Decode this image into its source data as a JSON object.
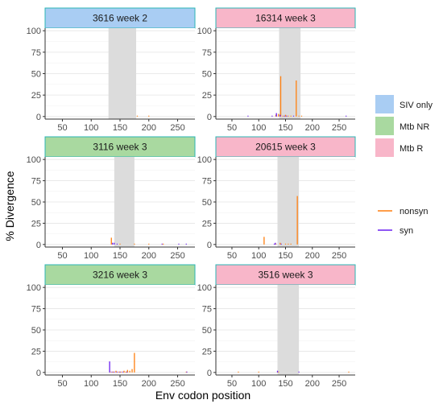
{
  "chart_data": {
    "type": "faceted-bar",
    "xlabel": "Env codon position",
    "ylabel": "% Divergence",
    "xlim": [
      20,
      280
    ],
    "ylim": [
      -3,
      103
    ],
    "x_ticks": [
      50,
      100,
      150,
      200,
      250
    ],
    "y_ticks": [
      0,
      25,
      50,
      75,
      100
    ],
    "grid": true,
    "legend_groups": [
      {
        "position": "right",
        "kind": "fill",
        "entries": [
          {
            "label": "SIV only",
            "color": "#a9cdf3"
          },
          {
            "label": "Mtb NR",
            "color": "#a9d9a0"
          },
          {
            "label": "Mtb R",
            "color": "#f8b6c9"
          }
        ]
      },
      {
        "position": "right",
        "kind": "line",
        "entries": [
          {
            "label": "nonsyn",
            "color": "#ff7f0e"
          },
          {
            "label": "syn",
            "color": "#6a1ef0"
          }
        ]
      }
    ],
    "facets": [
      {
        "title": "3616 week 2",
        "group": "SIV only",
        "shade": [
          130,
          178
        ],
        "nonsyn": [
          [
            180,
            1
          ],
          [
            200,
            1
          ]
        ],
        "syn": []
      },
      {
        "title": "16314 week 3",
        "group": "Mtb R",
        "shade": [
          138,
          178
        ],
        "nonsyn": [
          [
            132,
            2
          ],
          [
            137,
            3
          ],
          [
            141,
            47
          ],
          [
            145,
            1
          ],
          [
            150,
            2
          ],
          [
            155,
            1
          ],
          [
            160,
            1
          ],
          [
            170,
            42
          ],
          [
            175,
            1
          ],
          [
            180,
            1
          ]
        ],
        "syn": [
          [
            80,
            1
          ],
          [
            125,
            1
          ],
          [
            133,
            4
          ],
          [
            140,
            2
          ],
          [
            148,
            1
          ],
          [
            152,
            1
          ],
          [
            165,
            1
          ],
          [
            263,
            1
          ]
        ]
      },
      {
        "title": "3116 week 3",
        "group": "Mtb NR",
        "shade": [
          140,
          175
        ],
        "nonsyn": [
          [
            135,
            8
          ],
          [
            150,
            1
          ],
          [
            175,
            1
          ],
          [
            200,
            1
          ],
          [
            225,
            1
          ]
        ],
        "syn": [
          [
            137,
            2
          ],
          [
            140,
            2
          ],
          [
            145,
            1
          ],
          [
            223,
            1
          ],
          [
            252,
            1
          ],
          [
            265,
            1
          ]
        ]
      },
      {
        "title": "20615 week 3",
        "group": "Mtb R",
        "shade": [
          135,
          175
        ],
        "nonsyn": [
          [
            110,
            9
          ],
          [
            132,
            1
          ],
          [
            140,
            2
          ],
          [
            150,
            1
          ],
          [
            155,
            1
          ],
          [
            160,
            1
          ],
          [
            172,
            57
          ]
        ],
        "syn": [
          [
            129,
            1
          ],
          [
            131,
            2
          ],
          [
            142,
            1
          ]
        ]
      },
      {
        "title": "3216 week 3",
        "group": "Mtb NR",
        "shade": null,
        "nonsyn": [
          [
            133,
            1
          ],
          [
            138,
            1
          ],
          [
            143,
            2
          ],
          [
            148,
            1
          ],
          [
            152,
            1
          ],
          [
            157,
            2
          ],
          [
            160,
            1
          ],
          [
            163,
            3
          ],
          [
            167,
            2
          ],
          [
            171,
            4
          ],
          [
            175,
            23
          ],
          [
            265,
            1
          ]
        ],
        "syn": [
          [
            132,
            13
          ],
          [
            136,
            1
          ],
          [
            140,
            1
          ],
          [
            145,
            1
          ],
          [
            150,
            1
          ],
          [
            155,
            1
          ],
          [
            162,
            1
          ],
          [
            266,
            1
          ]
        ]
      },
      {
        "title": "3516 week 3",
        "group": "Mtb R",
        "shade": [
          135,
          175
        ],
        "nonsyn": [
          [
            62,
            1
          ],
          [
            100,
            1
          ],
          [
            137,
            1
          ],
          [
            268,
            1
          ]
        ],
        "syn": [
          [
            135,
            2
          ],
          [
            175,
            1
          ]
        ]
      }
    ]
  }
}
